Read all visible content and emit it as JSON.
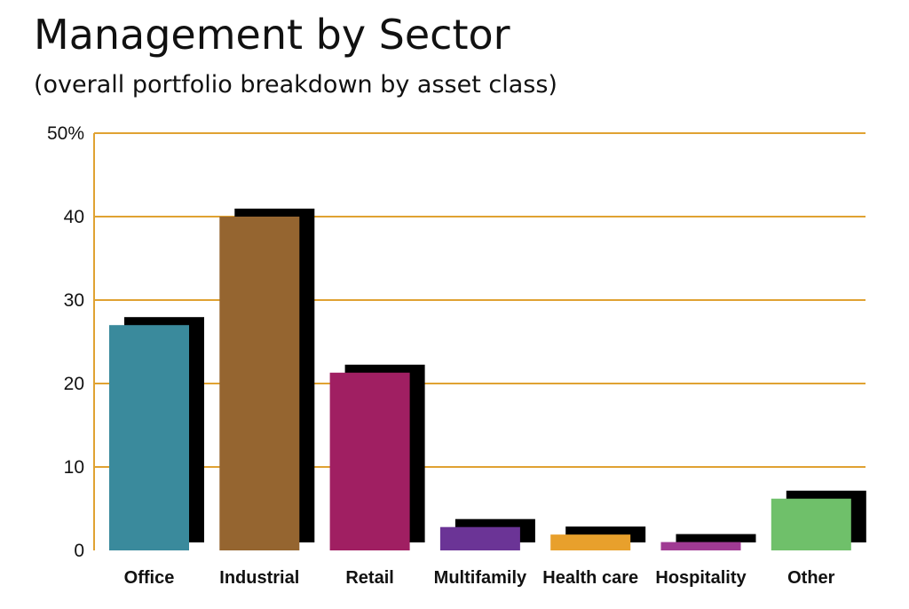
{
  "chart_data": {
    "type": "bar",
    "title": "Management by Sector",
    "subtitle": "(overall portfolio breakdown by asset class)",
    "categories": [
      "Office",
      "Industrial",
      "Retail",
      "Multifamily",
      "Health care",
      "Hospitality",
      "Other"
    ],
    "values": [
      27,
      40,
      21.3,
      2.8,
      1.9,
      1.0,
      6.2
    ],
    "colors": [
      "#3a8a9c",
      "#956530",
      "#a01f62",
      "#6b3496",
      "#e8a02c",
      "#a03a93",
      "#6fc06a"
    ],
    "shadow_color": "#000000",
    "yticks": [
      "0",
      "10",
      "20",
      "30",
      "40",
      "50%"
    ],
    "ytick_values": [
      0,
      10,
      20,
      30,
      40,
      50
    ],
    "ylim": [
      0,
      50
    ],
    "xlabel": "",
    "ylabel": "",
    "grid": true,
    "grid_color": "#e0a232"
  }
}
